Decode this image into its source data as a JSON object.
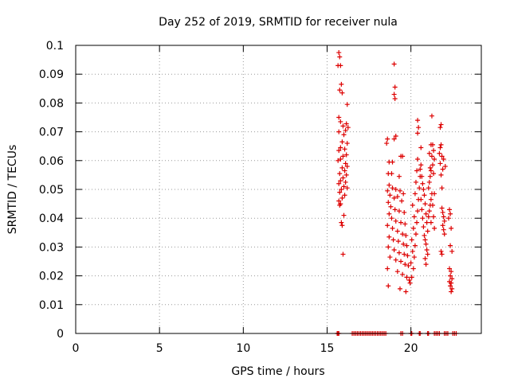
{
  "chart_data": {
    "type": "scatter",
    "title": "Day 252 of 2019, SRMTID for receiver nula",
    "xlabel": "GPS time / hours",
    "ylabel": "SRMTID / TECUs",
    "xlim": [
      0,
      24.2
    ],
    "ylim": [
      0,
      0.1
    ],
    "x_ticks": [
      0,
      5,
      10,
      15,
      20
    ],
    "y_ticks": [
      0,
      0.01,
      0.02,
      0.03,
      0.04,
      0.05,
      0.06,
      0.07,
      0.08,
      0.09,
      0.1
    ],
    "x_tick_labels": [
      "0",
      "5",
      "10",
      "15",
      "20"
    ],
    "y_tick_labels": [
      "0",
      "0.01",
      "0.02",
      "0.03",
      "0.04",
      "0.05",
      "0.06",
      "0.07",
      "0.08",
      "0.09",
      "0.1"
    ],
    "grid": true,
    "grid_style": "dotted",
    "marker": "+",
    "color": "#dd0000",
    "series": [
      {
        "name": "",
        "points": [
          [
            15.7,
            0.0975
          ],
          [
            15.75,
            0.096
          ],
          [
            15.8,
            0.093
          ],
          [
            15.65,
            0.093
          ],
          [
            15.85,
            0.0865
          ],
          [
            15.75,
            0.0845
          ],
          [
            15.9,
            0.0835
          ],
          [
            16.2,
            0.0795
          ],
          [
            15.7,
            0.075
          ],
          [
            15.8,
            0.0735
          ],
          [
            15.95,
            0.072
          ],
          [
            16.15,
            0.0728
          ],
          [
            16.25,
            0.0715
          ],
          [
            16.1,
            0.0705
          ],
          [
            15.7,
            0.07
          ],
          [
            16.0,
            0.069
          ],
          [
            15.9,
            0.0665
          ],
          [
            16.2,
            0.066
          ],
          [
            15.8,
            0.0645
          ],
          [
            16.05,
            0.064
          ],
          [
            15.7,
            0.0635
          ],
          [
            16.15,
            0.062
          ],
          [
            15.95,
            0.0615
          ],
          [
            15.8,
            0.0605
          ],
          [
            15.65,
            0.06
          ],
          [
            16.1,
            0.059
          ],
          [
            16.2,
            0.058
          ],
          [
            15.9,
            0.0575
          ],
          [
            16.05,
            0.0565
          ],
          [
            15.75,
            0.0555
          ],
          [
            16.15,
            0.055
          ],
          [
            15.95,
            0.054
          ],
          [
            15.8,
            0.053
          ],
          [
            16.1,
            0.0525
          ],
          [
            15.7,
            0.052
          ],
          [
            16.0,
            0.051
          ],
          [
            16.2,
            0.0505
          ],
          [
            15.85,
            0.05
          ],
          [
            15.75,
            0.049
          ],
          [
            16.05,
            0.048
          ],
          [
            15.9,
            0.047
          ],
          [
            15.7,
            0.046
          ],
          [
            15.8,
            0.045
          ],
          [
            15.75,
            0.0445
          ],
          [
            16.0,
            0.041
          ],
          [
            15.85,
            0.0385
          ],
          [
            15.9,
            0.0375
          ],
          [
            15.95,
            0.0275
          ],
          [
            19.0,
            0.0935
          ],
          [
            19.05,
            0.0855
          ],
          [
            19.0,
            0.083
          ],
          [
            19.05,
            0.0815
          ],
          [
            18.6,
            0.0675
          ],
          [
            18.55,
            0.066
          ],
          [
            19.1,
            0.0685
          ],
          [
            19.0,
            0.0675
          ],
          [
            19.4,
            0.0615
          ],
          [
            19.5,
            0.0615
          ],
          [
            18.7,
            0.0595
          ],
          [
            18.9,
            0.0595
          ],
          [
            18.65,
            0.0555
          ],
          [
            18.85,
            0.0555
          ],
          [
            19.3,
            0.0545
          ],
          [
            18.7,
            0.0515
          ],
          [
            18.9,
            0.0505
          ],
          [
            19.1,
            0.05
          ],
          [
            19.35,
            0.0495
          ],
          [
            19.55,
            0.0485
          ],
          [
            18.6,
            0.0495
          ],
          [
            18.75,
            0.048
          ],
          [
            19.0,
            0.047
          ],
          [
            19.2,
            0.0475
          ],
          [
            19.45,
            0.046
          ],
          [
            18.65,
            0.0455
          ],
          [
            18.8,
            0.044
          ],
          [
            19.05,
            0.043
          ],
          [
            19.3,
            0.0425
          ],
          [
            19.6,
            0.042
          ],
          [
            18.7,
            0.0415
          ],
          [
            18.85,
            0.04
          ],
          [
            19.1,
            0.039
          ],
          [
            19.4,
            0.0385
          ],
          [
            19.65,
            0.038
          ],
          [
            18.6,
            0.0375
          ],
          [
            18.9,
            0.0365
          ],
          [
            19.2,
            0.0355
          ],
          [
            19.5,
            0.0345
          ],
          [
            19.7,
            0.034
          ],
          [
            18.7,
            0.0335
          ],
          [
            18.95,
            0.0325
          ],
          [
            19.25,
            0.032
          ],
          [
            19.55,
            0.031
          ],
          [
            19.75,
            0.0305
          ],
          [
            18.65,
            0.03
          ],
          [
            19.0,
            0.029
          ],
          [
            19.3,
            0.028
          ],
          [
            19.6,
            0.0275
          ],
          [
            19.8,
            0.027
          ],
          [
            18.75,
            0.0265
          ],
          [
            19.1,
            0.0255
          ],
          [
            19.4,
            0.025
          ],
          [
            19.65,
            0.024
          ],
          [
            19.85,
            0.0235
          ],
          [
            18.6,
            0.0225
          ],
          [
            19.2,
            0.0215
          ],
          [
            19.5,
            0.0205
          ],
          [
            19.75,
            0.0195
          ],
          [
            19.9,
            0.0185
          ],
          [
            18.65,
            0.0165
          ],
          [
            19.35,
            0.0155
          ],
          [
            19.7,
            0.0145
          ],
          [
            19.95,
            0.0175
          ],
          [
            20.05,
            0.0195
          ],
          [
            20.15,
            0.0225
          ],
          [
            20.0,
            0.0245
          ],
          [
            20.2,
            0.0265
          ],
          [
            20.1,
            0.0285
          ],
          [
            20.25,
            0.0305
          ],
          [
            20.05,
            0.0325
          ],
          [
            20.3,
            0.0345
          ],
          [
            20.15,
            0.0365
          ],
          [
            20.35,
            0.0385
          ],
          [
            20.2,
            0.0405
          ],
          [
            20.4,
            0.0425
          ],
          [
            20.1,
            0.0445
          ],
          [
            20.45,
            0.0465
          ],
          [
            20.25,
            0.0485
          ],
          [
            20.5,
            0.0505
          ],
          [
            20.3,
            0.0525
          ],
          [
            20.55,
            0.0545
          ],
          [
            20.35,
            0.0565
          ],
          [
            20.6,
            0.0585
          ],
          [
            20.4,
            0.0605
          ],
          [
            20.6,
            0.0645
          ],
          [
            20.4,
            0.0695
          ],
          [
            20.45,
            0.0715
          ],
          [
            20.4,
            0.074
          ],
          [
            20.55,
            0.057
          ],
          [
            20.65,
            0.0545
          ],
          [
            20.7,
            0.052
          ],
          [
            20.75,
            0.05
          ],
          [
            20.8,
            0.048
          ],
          [
            20.6,
            0.0465
          ],
          [
            20.85,
            0.045
          ],
          [
            20.65,
            0.043
          ],
          [
            20.9,
            0.0415
          ],
          [
            20.7,
            0.04
          ],
          [
            20.95,
            0.0385
          ],
          [
            20.75,
            0.037
          ],
          [
            21.0,
            0.0355
          ],
          [
            20.8,
            0.034
          ],
          [
            20.85,
            0.0325
          ],
          [
            20.9,
            0.031
          ],
          [
            20.95,
            0.029
          ],
          [
            21.0,
            0.0275
          ],
          [
            20.85,
            0.026
          ],
          [
            20.9,
            0.024
          ],
          [
            21.05,
            0.0405
          ],
          [
            21.1,
            0.0425
          ],
          [
            21.15,
            0.0445
          ],
          [
            21.2,
            0.0465
          ],
          [
            21.25,
            0.0485
          ],
          [
            21.1,
            0.0525
          ],
          [
            21.15,
            0.0545
          ],
          [
            21.2,
            0.0565
          ],
          [
            21.3,
            0.0585
          ],
          [
            21.25,
            0.0615
          ],
          [
            21.35,
            0.0635
          ],
          [
            21.2,
            0.0655
          ],
          [
            21.3,
            0.0655
          ],
          [
            21.25,
            0.0755
          ],
          [
            21.1,
            0.0625
          ],
          [
            21.4,
            0.0605
          ],
          [
            21.15,
            0.0575
          ],
          [
            21.35,
            0.0555
          ],
          [
            21.05,
            0.0505
          ],
          [
            21.4,
            0.0485
          ],
          [
            21.3,
            0.0445
          ],
          [
            21.35,
            0.0405
          ],
          [
            21.2,
            0.0385
          ],
          [
            21.4,
            0.0365
          ],
          [
            21.7,
            0.0625
          ],
          [
            21.75,
            0.0645
          ],
          [
            21.8,
            0.0655
          ],
          [
            21.85,
            0.0615
          ],
          [
            21.75,
            0.059
          ],
          [
            21.9,
            0.057
          ],
          [
            21.8,
            0.055
          ],
          [
            22.05,
            0.058
          ],
          [
            21.85,
            0.0505
          ],
          [
            21.75,
            0.0715
          ],
          [
            21.8,
            0.0725
          ],
          [
            21.95,
            0.0605
          ],
          [
            21.85,
            0.0435
          ],
          [
            21.9,
            0.042
          ],
          [
            21.95,
            0.0405
          ],
          [
            22.0,
            0.039
          ],
          [
            21.9,
            0.0375
          ],
          [
            21.95,
            0.036
          ],
          [
            22.0,
            0.0345
          ],
          [
            21.8,
            0.0285
          ],
          [
            21.85,
            0.0275
          ],
          [
            22.3,
            0.043
          ],
          [
            22.35,
            0.0415
          ],
          [
            22.25,
            0.04
          ],
          [
            22.4,
            0.0365
          ],
          [
            22.35,
            0.0305
          ],
          [
            22.45,
            0.0285
          ],
          [
            22.3,
            0.0225
          ],
          [
            22.4,
            0.0215
          ],
          [
            22.35,
            0.02
          ],
          [
            22.45,
            0.019
          ],
          [
            22.3,
            0.018
          ],
          [
            22.4,
            0.0175
          ],
          [
            22.35,
            0.0165
          ],
          [
            22.45,
            0.0155
          ],
          [
            22.4,
            0.0145
          ]
        ]
      },
      {
        "name": "",
        "points": [
          [
            15.6,
            0
          ],
          [
            15.65,
            0
          ],
          [
            15.7,
            0
          ],
          [
            16.5,
            0
          ],
          [
            16.6,
            0
          ],
          [
            16.7,
            0
          ],
          [
            16.8,
            0
          ],
          [
            16.9,
            0
          ],
          [
            17.0,
            0
          ],
          [
            17.1,
            0
          ],
          [
            17.2,
            0
          ],
          [
            17.3,
            0
          ],
          [
            17.4,
            0
          ],
          [
            17.5,
            0
          ],
          [
            17.6,
            0
          ],
          [
            17.7,
            0
          ],
          [
            17.8,
            0
          ],
          [
            17.9,
            0
          ],
          [
            18.0,
            0
          ],
          [
            18.1,
            0
          ],
          [
            18.2,
            0
          ],
          [
            18.3,
            0
          ],
          [
            18.4,
            0
          ],
          [
            18.5,
            0
          ],
          [
            19.4,
            0
          ],
          [
            19.5,
            0
          ],
          [
            20.0,
            0
          ],
          [
            20.05,
            0
          ],
          [
            20.5,
            0
          ],
          [
            20.55,
            0
          ],
          [
            21.0,
            0
          ],
          [
            21.05,
            0
          ],
          [
            21.4,
            0
          ],
          [
            21.5,
            0
          ],
          [
            21.6,
            0
          ],
          [
            21.7,
            0
          ],
          [
            22.0,
            0
          ],
          [
            22.1,
            0
          ],
          [
            22.2,
            0
          ],
          [
            22.5,
            0
          ],
          [
            22.6,
            0
          ],
          [
            22.7,
            0
          ]
        ]
      }
    ]
  }
}
